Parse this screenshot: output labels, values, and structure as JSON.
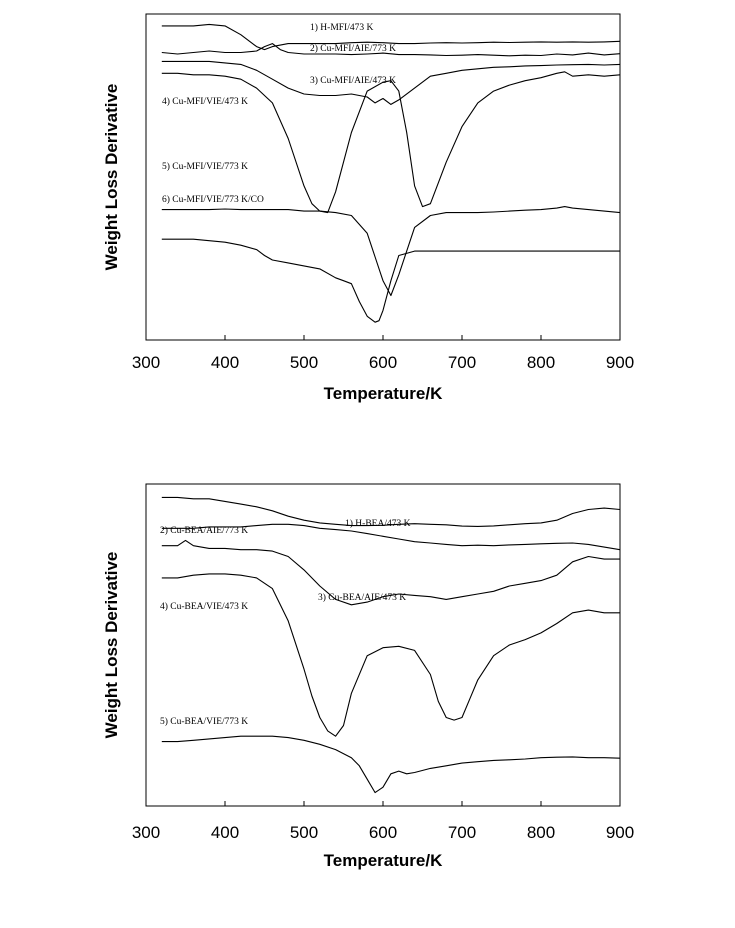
{
  "chart_data": [
    {
      "type": "line",
      "xlabel": "Temperature/K",
      "ylabel": "Weight Loss Derivative",
      "xlim": [
        300,
        900
      ],
      "xticks": [
        300,
        400,
        500,
        600,
        700,
        800,
        900
      ],
      "series": [
        {
          "name": "1) H-MFI/473 K",
          "x": [
            320,
            340,
            360,
            380,
            400,
            420,
            440,
            450,
            460,
            480,
            500,
            520,
            540,
            560,
            580,
            600,
            620,
            640,
            660,
            680,
            700,
            720,
            740,
            760,
            780,
            800,
            820,
            840,
            860,
            880,
            900
          ],
          "y": [
            96,
            96,
            96,
            96.5,
            96,
            93,
            89,
            88,
            89,
            90,
            90,
            90,
            90,
            90.3,
            90.5,
            90.3,
            90,
            90,
            90.2,
            90.3,
            90.2,
            90.3,
            90.5,
            90.4,
            90.5,
            90.6,
            90.5,
            90.6,
            90.5,
            90.6,
            90.8
          ]
        },
        {
          "name": "2) Cu-MFI/AIE/773 K",
          "x": [
            320,
            340,
            360,
            380,
            400,
            420,
            440,
            450,
            460,
            470,
            480,
            500,
            520,
            540,
            560,
            580,
            600,
            620,
            640,
            660,
            680,
            700,
            720,
            740,
            760,
            780,
            800,
            820,
            840,
            860,
            880,
            900
          ],
          "y": [
            87,
            86.5,
            87,
            87.5,
            87,
            87,
            87.5,
            89,
            90,
            88,
            87,
            86.5,
            86.5,
            86.5,
            86.3,
            86.5,
            86.8,
            86.3,
            86.3,
            86.2,
            86,
            86.1,
            86.3,
            86.1,
            85.9,
            86.1,
            86,
            86.5,
            86.2,
            86.8,
            86.2,
            86.6
          ]
        },
        {
          "name": "3) Cu-MFI/AIE/473 K",
          "x": [
            320,
            340,
            360,
            380,
            400,
            420,
            440,
            460,
            480,
            500,
            520,
            540,
            560,
            580,
            590,
            600,
            610,
            620,
            640,
            660,
            680,
            700,
            720,
            740,
            760,
            780,
            800,
            820,
            840,
            860,
            880,
            900
          ],
          "y": [
            84,
            84,
            84,
            84,
            83.5,
            83,
            81,
            78,
            75,
            73,
            72.5,
            72.5,
            73,
            72,
            70,
            71.5,
            69.5,
            71,
            75,
            79,
            80,
            81,
            81.5,
            82,
            82.2,
            82.5,
            82.6,
            82.8,
            82.9,
            83,
            82.8,
            83
          ]
        },
        {
          "name": "4) Cu-MFI/VIE/473 K",
          "x": [
            320,
            340,
            360,
            380,
            400,
            420,
            440,
            460,
            480,
            500,
            510,
            520,
            530,
            540,
            560,
            580,
            600,
            610,
            620,
            630,
            640,
            650,
            660,
            680,
            700,
            720,
            740,
            760,
            780,
            800,
            820,
            830,
            840,
            860,
            880,
            900
          ],
          "y": [
            80,
            80,
            79.5,
            79.5,
            79,
            78,
            75,
            70,
            58,
            42,
            36,
            33.5,
            33,
            40,
            60,
            74,
            77,
            77.5,
            74,
            60,
            42,
            35,
            36,
            50,
            62,
            70,
            74,
            76,
            77.5,
            78.5,
            80,
            80.5,
            79,
            79.5,
            79,
            79.5
          ]
        },
        {
          "name": "5) Cu-MFI/VIE/773 K",
          "x": [
            320,
            340,
            360,
            380,
            400,
            420,
            440,
            460,
            480,
            500,
            520,
            540,
            560,
            580,
            590,
            600,
            610,
            620,
            640,
            660,
            680,
            700,
            720,
            740,
            760,
            780,
            800,
            820,
            830,
            840,
            860,
            880,
            900
          ],
          "y": [
            34,
            34,
            34,
            34,
            34.2,
            34,
            34,
            34,
            34,
            33.5,
            33.5,
            33,
            32,
            26,
            18,
            10,
            5,
            12,
            28,
            32,
            33,
            33,
            33,
            33.2,
            33.5,
            33.8,
            34,
            34.5,
            35,
            34.5,
            34,
            33.5,
            33
          ]
        },
        {
          "name": "6) Cu-MFI/VIE/773 K/CO",
          "x": [
            320,
            340,
            360,
            380,
            400,
            420,
            440,
            450,
            460,
            480,
            500,
            520,
            540,
            550,
            560,
            570,
            580,
            590,
            595,
            600,
            610,
            620,
            640,
            660,
            680,
            700,
            720,
            740,
            760,
            780,
            800,
            820,
            840,
            860,
            880,
            900
          ],
          "y": [
            24,
            24,
            24,
            23.5,
            23,
            22,
            20.5,
            18.5,
            17,
            16,
            15,
            14,
            11,
            10,
            9,
            3,
            -2,
            -4,
            -3.5,
            0,
            10,
            18.5,
            20,
            20,
            20,
            20,
            20,
            20,
            20,
            20,
            20,
            20,
            20,
            20,
            20,
            20
          ]
        }
      ]
    },
    {
      "type": "line",
      "xlabel": "Temperature/K",
      "ylabel": "Weight Loss Derivative",
      "xlim": [
        300,
        900
      ],
      "xticks": [
        300,
        400,
        500,
        600,
        700,
        800,
        900
      ],
      "series": [
        {
          "name": "1) H-BEA/473 K",
          "x": [
            320,
            340,
            360,
            380,
            400,
            420,
            440,
            460,
            480,
            500,
            520,
            540,
            560,
            580,
            600,
            620,
            640,
            660,
            680,
            700,
            720,
            740,
            760,
            780,
            800,
            820,
            840,
            860,
            880,
            900
          ],
          "y": [
            100,
            100,
            99.5,
            99.5,
            98.5,
            97.5,
            96.5,
            95,
            93,
            91.5,
            90.5,
            90,
            89.5,
            89.5,
            89.6,
            90,
            90.2,
            90,
            89.8,
            89.3,
            89.2,
            89.4,
            89.8,
            90.2,
            90.5,
            91.5,
            94,
            95.5,
            96,
            95.5
          ]
        },
        {
          "name": "2) Cu-BEA/AIE/773 K",
          "x": [
            320,
            340,
            360,
            380,
            400,
            420,
            440,
            460,
            480,
            500,
            520,
            540,
            560,
            580,
            600,
            620,
            640,
            660,
            680,
            700,
            720,
            740,
            760,
            780,
            800,
            820,
            840,
            860,
            880,
            900
          ],
          "y": [
            88.5,
            88.5,
            88.5,
            89,
            89,
            89,
            89.5,
            90,
            90,
            89.5,
            88.5,
            88,
            87.5,
            86.5,
            85.5,
            84.5,
            83.5,
            83,
            82.5,
            82,
            82.2,
            82,
            82.3,
            82.5,
            82.7,
            82.9,
            83,
            82.5,
            81.5,
            80.5
          ]
        },
        {
          "name": "3) Cu-BEA/AIE/473 K",
          "x": [
            320,
            340,
            350,
            360,
            380,
            400,
            420,
            440,
            460,
            480,
            500,
            520,
            540,
            560,
            580,
            600,
            620,
            640,
            660,
            680,
            700,
            720,
            740,
            760,
            780,
            800,
            820,
            840,
            860,
            880,
            900
          ],
          "y": [
            82,
            82,
            84,
            82,
            81,
            81,
            80.5,
            80.5,
            80,
            78,
            73,
            67,
            62,
            60,
            61,
            63,
            64,
            63.5,
            63,
            62,
            63,
            64,
            65,
            67,
            68,
            69,
            71,
            76,
            78,
            77,
            77
          ]
        },
        {
          "name": "4) Cu-BEA/VIE/473 K",
          "x": [
            320,
            340,
            360,
            380,
            400,
            420,
            440,
            460,
            480,
            500,
            510,
            520,
            530,
            540,
            550,
            560,
            580,
            600,
            620,
            640,
            660,
            670,
            680,
            690,
            700,
            710,
            720,
            740,
            760,
            780,
            800,
            820,
            840,
            860,
            880,
            900
          ],
          "y": [
            70,
            70,
            71,
            71.5,
            71.5,
            71,
            70,
            66,
            54,
            36,
            26,
            18,
            13,
            11,
            15,
            27,
            41,
            44,
            44.5,
            43,
            34,
            24,
            18,
            17,
            18,
            25,
            32,
            41,
            45,
            47,
            49.5,
            53,
            57,
            58,
            57,
            57
          ]
        },
        {
          "name": "5) Cu-BEA/VIE/773 K",
          "x": [
            320,
            340,
            360,
            380,
            400,
            420,
            440,
            460,
            480,
            500,
            520,
            540,
            560,
            570,
            580,
            590,
            600,
            610,
            620,
            630,
            640,
            660,
            680,
            700,
            720,
            740,
            760,
            780,
            800,
            820,
            840,
            860,
            880,
            900
          ],
          "y": [
            9,
            9,
            9.5,
            10,
            10.5,
            11,
            11,
            11,
            10.5,
            9.5,
            8,
            6,
            3,
            0,
            -5,
            -10,
            -8,
            -3,
            -2,
            -3,
            -2.5,
            -1,
            0,
            1,
            1.5,
            2,
            2.2,
            2.5,
            3,
            3.2,
            3.3,
            3,
            3,
            2.8
          ]
        }
      ]
    }
  ]
}
